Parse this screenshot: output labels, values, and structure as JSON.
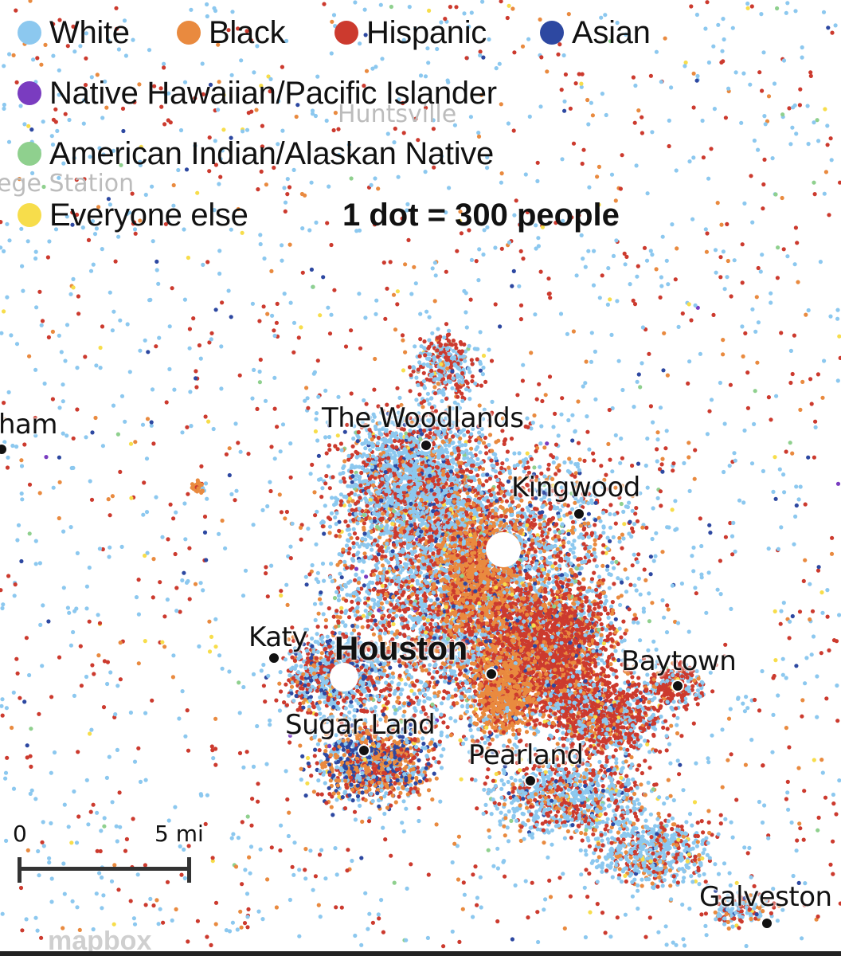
{
  "legend": {
    "items": [
      {
        "label": "White",
        "color": "#8cc8ef"
      },
      {
        "label": "Black",
        "color": "#e98a3f"
      },
      {
        "label": "Hispanic",
        "color": "#cc3a2e"
      },
      {
        "label": "Asian",
        "color": "#2d48a1"
      },
      {
        "label": "Native Hawaiian/Pacific Islander",
        "color": "#7a3cc0"
      },
      {
        "label": "American Indian/Alaskan Native",
        "color": "#8fd08e"
      },
      {
        "label": "Everyone else",
        "color": "#f7dd4b"
      }
    ],
    "scale_note": "1 dot = 300 people"
  },
  "places": {
    "houston": "Houston",
    "woodlands": "The Woodlands",
    "kingwood": "Kingwood",
    "katy": "Katy",
    "baytown": "Baytown",
    "sugar_land": "Sugar Land",
    "pearland": "Pearland",
    "galveston": "Galveston",
    "ham": "ham"
  },
  "background_places": {
    "huntsville": "Huntsville",
    "college_station": "ege Station"
  },
  "scale_bar": {
    "start_label": "0",
    "end_label": "5 mi"
  },
  "attribution": "mapbox"
}
